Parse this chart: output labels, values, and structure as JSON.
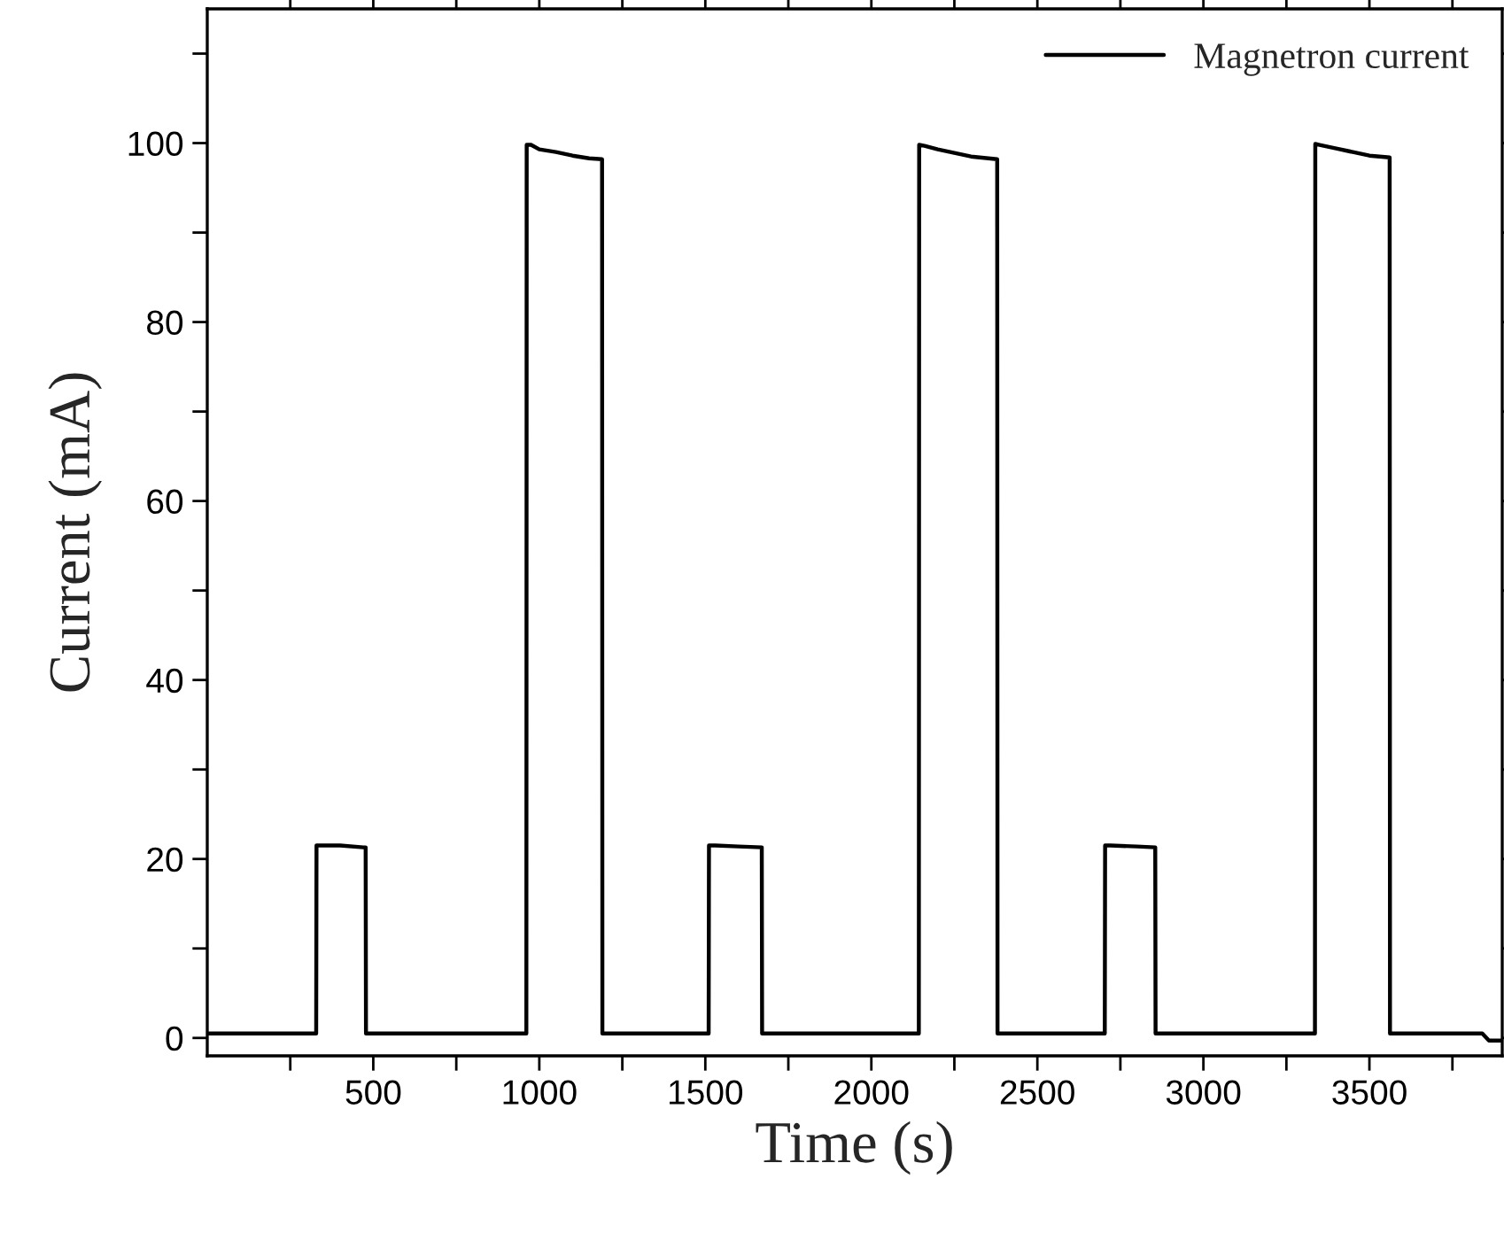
{
  "chart_data": {
    "type": "line",
    "xlabel": "Time (s)",
    "ylabel": "Current (mA)",
    "x": [
      0,
      100,
      200,
      328,
      329,
      340,
      400,
      470,
      477,
      478,
      500,
      700,
      900,
      961,
      962,
      975,
      1000,
      1050,
      1100,
      1150,
      1189,
      1190,
      1200,
      1350,
      1510,
      1511,
      1530,
      1600,
      1670,
      1671,
      1700,
      1900,
      2143,
      2144,
      2160,
      2200,
      2250,
      2300,
      2379,
      2380,
      2400,
      2550,
      2703,
      2704,
      2720,
      2800,
      2855,
      2856,
      2900,
      3100,
      3336,
      3337,
      3350,
      3400,
      3450,
      3500,
      3561,
      3562,
      3600,
      3800,
      3840,
      3860,
      3900
    ],
    "series": [
      {
        "name": "Magnetron current",
        "color": "#000000",
        "values": [
          0.5,
          0.5,
          0.5,
          0.5,
          21.5,
          21.5,
          21.5,
          21.3,
          21.3,
          0.5,
          0.5,
          0.5,
          0.5,
          0.5,
          99.8,
          99.8,
          99.3,
          99.0,
          98.6,
          98.3,
          98.2,
          0.5,
          0.5,
          0.5,
          0.5,
          21.5,
          21.5,
          21.4,
          21.3,
          0.5,
          0.5,
          0.5,
          0.5,
          99.8,
          99.7,
          99.3,
          98.9,
          98.5,
          98.2,
          0.5,
          0.5,
          0.5,
          0.5,
          21.5,
          21.5,
          21.4,
          21.3,
          0.5,
          0.5,
          0.5,
          0.5,
          99.9,
          99.8,
          99.4,
          99.0,
          98.6,
          98.4,
          0.5,
          0.5,
          0.5,
          0.5,
          -0.3,
          -0.3
        ]
      }
    ],
    "xlim": [
      0,
      3900
    ],
    "ylim": [
      -2,
      115
    ],
    "xticks": [
      {
        "value": 250,
        "label": null
      },
      500,
      {
        "value": 750,
        "label": null
      },
      1000,
      {
        "value": 1250,
        "label": null
      },
      1500,
      {
        "value": 1750,
        "label": null
      },
      2000,
      {
        "value": 2250,
        "label": null
      },
      2500,
      {
        "value": 2750,
        "label": null
      },
      3000,
      {
        "value": 3250,
        "label": null
      },
      3500,
      {
        "value": 3750,
        "label": null
      }
    ],
    "yticks": [
      0,
      {
        "value": 10,
        "label": null
      },
      20,
      {
        "value": 30,
        "label": null
      },
      40,
      {
        "value": 50,
        "label": null
      },
      60,
      {
        "value": 70,
        "label": null
      },
      80,
      {
        "value": 90,
        "label": null
      },
      100,
      {
        "value": 110,
        "label": null
      }
    ],
    "legend": "top right",
    "grid": false,
    "marker": "none",
    "line_style": "solid"
  }
}
